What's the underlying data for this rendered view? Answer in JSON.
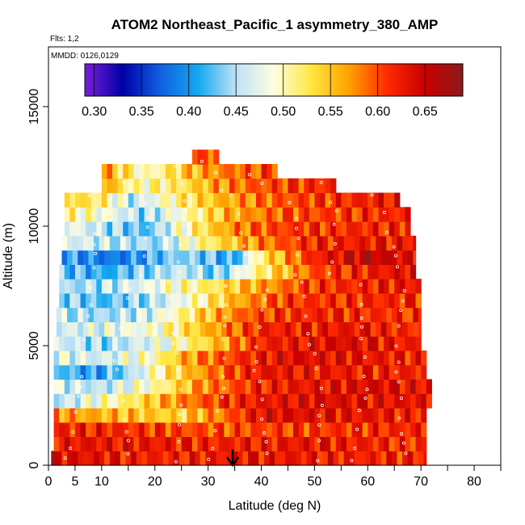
{
  "chart_data": {
    "type": "heatmap",
    "title": "ATOM2 Northeast_Pacific_1 asymmetry_380_AMP",
    "flights_label": "Flts: 1,2",
    "dates_label": "MMDD: 0126,0129",
    "xlabel": "Latitude (deg N)",
    "ylabel": "Altitude (m)",
    "xlim": [
      0,
      85
    ],
    "ylim": [
      0,
      17500
    ],
    "x_ticks": [
      0,
      5,
      10,
      20,
      30,
      40,
      50,
      60,
      70,
      80
    ],
    "x_tick_labels": [
      "0",
      "5",
      "10",
      "20",
      "30",
      "40",
      "50",
      "60",
      "70",
      "80"
    ],
    "x_minor_ticks": [
      15,
      25,
      35,
      45,
      55,
      65,
      75,
      85
    ],
    "y_ticks": [
      0,
      5000,
      10000,
      15000
    ],
    "y_tick_labels": [
      "0",
      "5000",
      "10000",
      "15000"
    ],
    "colorbar": {
      "min": 0.29,
      "max": 0.69,
      "ticks": [
        0.3,
        0.35,
        0.4,
        0.45,
        0.5,
        0.55,
        0.6,
        0.65
      ],
      "tick_labels": [
        "0.30",
        "0.35",
        "0.40",
        "0.45",
        "0.50",
        "0.55",
        "0.60",
        "0.65"
      ],
      "stops": [
        "#7a1fd6",
        "#0000a8",
        "#1060e0",
        "#14a8f0",
        "#bfe2f5",
        "#fffde0",
        "#ffe640",
        "#ffa000",
        "#ff2a00",
        "#c80000",
        "#8c1a1a"
      ]
    },
    "bands": [
      {
        "alt": 300,
        "lat_min": 0.5,
        "lat_max": 71,
        "profile": [
          [
            0,
            0.64
          ],
          [
            20,
            0.62
          ],
          [
            40,
            0.63
          ],
          [
            60,
            0.62
          ],
          [
            71,
            0.62
          ]
        ]
      },
      {
        "alt": 900,
        "lat_min": 1,
        "lat_max": 71,
        "profile": [
          [
            0,
            0.63
          ],
          [
            15,
            0.63
          ],
          [
            30,
            0.62
          ],
          [
            50,
            0.63
          ],
          [
            71,
            0.61
          ]
        ]
      },
      {
        "alt": 1500,
        "lat_min": 1,
        "lat_max": 71,
        "profile": [
          [
            0,
            0.62
          ],
          [
            10,
            0.62
          ],
          [
            30,
            0.6
          ],
          [
            50,
            0.61
          ],
          [
            71,
            0.62
          ]
        ]
      },
      {
        "alt": 2100,
        "lat_min": 1,
        "lat_max": 71,
        "profile": [
          [
            0,
            0.58
          ],
          [
            10,
            0.56
          ],
          [
            25,
            0.54
          ],
          [
            35,
            0.6
          ],
          [
            40,
            0.64
          ],
          [
            60,
            0.63
          ],
          [
            71,
            0.62
          ]
        ]
      },
      {
        "alt": 2700,
        "lat_min": 1,
        "lat_max": 72,
        "profile": [
          [
            0,
            0.44
          ],
          [
            8,
            0.48
          ],
          [
            15,
            0.52
          ],
          [
            25,
            0.58
          ],
          [
            35,
            0.62
          ],
          [
            50,
            0.64
          ],
          [
            72,
            0.63
          ]
        ]
      },
      {
        "alt": 3300,
        "lat_min": 1,
        "lat_max": 72,
        "profile": [
          [
            0,
            0.47
          ],
          [
            10,
            0.45
          ],
          [
            20,
            0.5
          ],
          [
            28,
            0.57
          ],
          [
            40,
            0.62
          ],
          [
            60,
            0.64
          ],
          [
            72,
            0.63
          ]
        ]
      },
      {
        "alt": 3900,
        "lat_min": 1,
        "lat_max": 71,
        "profile": [
          [
            0,
            0.44
          ],
          [
            8,
            0.4
          ],
          [
            15,
            0.44
          ],
          [
            22,
            0.52
          ],
          [
            30,
            0.58
          ],
          [
            40,
            0.63
          ],
          [
            71,
            0.62
          ]
        ]
      },
      {
        "alt": 4500,
        "lat_min": 1,
        "lat_max": 71,
        "profile": [
          [
            0,
            0.48
          ],
          [
            10,
            0.46
          ],
          [
            20,
            0.5
          ],
          [
            25,
            0.56
          ],
          [
            35,
            0.61
          ],
          [
            45,
            0.64
          ],
          [
            71,
            0.62
          ]
        ]
      },
      {
        "alt": 5100,
        "lat_min": 1,
        "lat_max": 70,
        "profile": [
          [
            0,
            0.47
          ],
          [
            10,
            0.44
          ],
          [
            22,
            0.48
          ],
          [
            30,
            0.54
          ],
          [
            40,
            0.62
          ],
          [
            55,
            0.64
          ],
          [
            70,
            0.62
          ]
        ]
      },
      {
        "alt": 5700,
        "lat_min": 1.5,
        "lat_max": 70,
        "profile": [
          [
            0,
            0.46
          ],
          [
            10,
            0.47
          ],
          [
            20,
            0.49
          ],
          [
            30,
            0.56
          ],
          [
            40,
            0.62
          ],
          [
            60,
            0.63
          ],
          [
            70,
            0.61
          ]
        ]
      },
      {
        "alt": 6300,
        "lat_min": 1.5,
        "lat_max": 70,
        "profile": [
          [
            0,
            0.46
          ],
          [
            10,
            0.44
          ],
          [
            20,
            0.47
          ],
          [
            30,
            0.55
          ],
          [
            38,
            0.6
          ],
          [
            50,
            0.62
          ],
          [
            70,
            0.61
          ]
        ]
      },
      {
        "alt": 6900,
        "lat_min": 2,
        "lat_max": 70,
        "profile": [
          [
            0,
            0.45
          ],
          [
            10,
            0.42
          ],
          [
            20,
            0.45
          ],
          [
            28,
            0.5
          ],
          [
            35,
            0.56
          ],
          [
            45,
            0.61
          ],
          [
            70,
            0.62
          ]
        ]
      },
      {
        "alt": 7500,
        "lat_min": 2,
        "lat_max": 70,
        "profile": [
          [
            0,
            0.44
          ],
          [
            10,
            0.45
          ],
          [
            20,
            0.48
          ],
          [
            30,
            0.52
          ],
          [
            38,
            0.56
          ],
          [
            50,
            0.61
          ],
          [
            70,
            0.63
          ]
        ]
      },
      {
        "alt": 8100,
        "lat_min": 2,
        "lat_max": 69,
        "profile": [
          [
            0,
            0.43
          ],
          [
            10,
            0.41
          ],
          [
            25,
            0.46
          ],
          [
            32,
            0.43
          ],
          [
            38,
            0.5
          ],
          [
            50,
            0.6
          ],
          [
            69,
            0.64
          ]
        ]
      },
      {
        "alt": 8700,
        "lat_min": 2.5,
        "lat_max": 69,
        "profile": [
          [
            0,
            0.42
          ],
          [
            12,
            0.38
          ],
          [
            25,
            0.44
          ],
          [
            35,
            0.41
          ],
          [
            40,
            0.52
          ],
          [
            50,
            0.62
          ],
          [
            60,
            0.66
          ],
          [
            69,
            0.63
          ]
        ]
      },
      {
        "alt": 9300,
        "lat_min": 2.5,
        "lat_max": 69,
        "profile": [
          [
            0,
            0.47
          ],
          [
            10,
            0.46
          ],
          [
            20,
            0.44
          ],
          [
            30,
            0.52
          ],
          [
            40,
            0.58
          ],
          [
            50,
            0.62
          ],
          [
            69,
            0.63
          ]
        ]
      },
      {
        "alt": 9900,
        "lat_min": 3,
        "lat_max": 68,
        "profile": [
          [
            0,
            0.5
          ],
          [
            8,
            0.46
          ],
          [
            18,
            0.42
          ],
          [
            28,
            0.52
          ],
          [
            35,
            0.58
          ],
          [
            45,
            0.61
          ],
          [
            68,
            0.62
          ]
        ]
      },
      {
        "alt": 10500,
        "lat_min": 3,
        "lat_max": 68,
        "profile": [
          [
            0,
            0.52
          ],
          [
            10,
            0.49
          ],
          [
            18,
            0.44
          ],
          [
            26,
            0.5
          ],
          [
            34,
            0.56
          ],
          [
            45,
            0.6
          ],
          [
            68,
            0.62
          ]
        ]
      },
      {
        "alt": 11100,
        "lat_min": 3,
        "lat_max": 66,
        "profile": [
          [
            0,
            0.55
          ],
          [
            10,
            0.52
          ],
          [
            16,
            0.45
          ],
          [
            25,
            0.52
          ],
          [
            33,
            0.56
          ],
          [
            45,
            0.6
          ],
          [
            66,
            0.63
          ]
        ]
      },
      {
        "alt": 11700,
        "lat_min": 10,
        "lat_max": 54,
        "profile": [
          [
            10,
            0.58
          ],
          [
            16,
            0.5
          ],
          [
            24,
            0.52
          ],
          [
            32,
            0.57
          ],
          [
            40,
            0.6
          ],
          [
            54,
            0.62
          ]
        ]
      },
      {
        "alt": 12300,
        "lat_min": 10,
        "lat_max": 43,
        "profile": [
          [
            10,
            0.58
          ],
          [
            18,
            0.49
          ],
          [
            26,
            0.55
          ],
          [
            32,
            0.58
          ],
          [
            43,
            0.61
          ]
        ]
      },
      {
        "alt": 12900,
        "lat_min": 27,
        "lat_max": 32,
        "profile": [
          [
            27,
            0.6
          ],
          [
            32,
            0.6
          ]
        ]
      }
    ]
  }
}
